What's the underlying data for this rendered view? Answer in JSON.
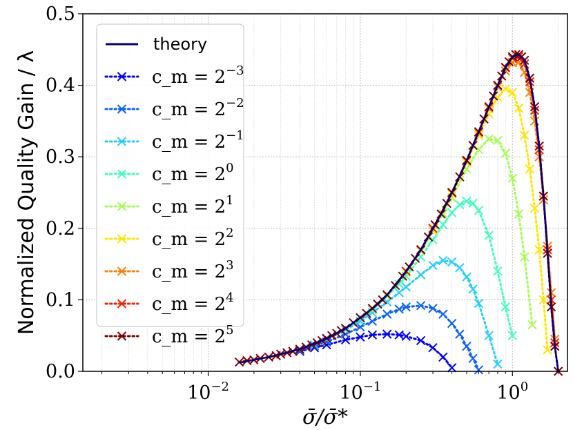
{
  "chart_data": {
    "type": "line",
    "title": "",
    "xlabel": "σ̄/σ̄*",
    "ylabel": "Normalized Quality Gain / λ",
    "xscale": "log",
    "xlim": [
      0.0015,
      2.3
    ],
    "ylim": [
      0.0,
      0.5
    ],
    "xticks": [
      {
        "value": 0.01,
        "label": "10",
        "exp": "−2"
      },
      {
        "value": 0.1,
        "label": "10",
        "exp": "−1"
      },
      {
        "value": 1,
        "label": "10",
        "exp": "0"
      }
    ],
    "yticks": [
      {
        "value": 0.0,
        "label": "0.0"
      },
      {
        "value": 0.1,
        "label": "0.1"
      },
      {
        "value": 0.2,
        "label": "0.2"
      },
      {
        "value": 0.3,
        "label": "0.3"
      },
      {
        "value": 0.4,
        "label": "0.4"
      },
      {
        "value": 0.5,
        "label": "0.5"
      }
    ],
    "grid": true,
    "legend_position": "top-left",
    "theory": {
      "name": "theory",
      "color": "#00007f",
      "x": [
        0.016,
        0.02,
        0.025,
        0.03,
        0.04,
        0.05,
        0.06,
        0.08,
        0.1,
        0.12,
        0.15,
        0.2,
        0.25,
        0.3,
        0.35,
        0.4,
        0.5,
        0.6,
        0.7,
        0.8,
        0.9,
        1.0,
        1.1,
        1.2,
        1.3,
        1.4,
        1.5,
        1.6,
        1.7,
        1.8,
        1.9,
        2.0
      ],
      "y": [
        0.012,
        0.016,
        0.02,
        0.024,
        0.031,
        0.039,
        0.046,
        0.06,
        0.075,
        0.088,
        0.107,
        0.14,
        0.17,
        0.2,
        0.225,
        0.25,
        0.295,
        0.335,
        0.37,
        0.4,
        0.425,
        0.44,
        0.443,
        0.435,
        0.41,
        0.37,
        0.315,
        0.245,
        0.165,
        0.09,
        0.035,
        0.0
      ]
    },
    "series": [
      {
        "name": "c_m = 2",
        "exp": "−3",
        "color": "#0000ff",
        "x": [
          0.04,
          0.05,
          0.06,
          0.08,
          0.1,
          0.12,
          0.15,
          0.18,
          0.2,
          0.25,
          0.3,
          0.35,
          0.4
        ],
        "y": [
          0.028,
          0.033,
          0.037,
          0.044,
          0.048,
          0.051,
          0.052,
          0.051,
          0.049,
          0.043,
          0.033,
          0.02,
          0.005
        ]
      },
      {
        "name": "c_m = 2",
        "exp": "−2",
        "color": "#0a62ff",
        "x": [
          0.04,
          0.05,
          0.06,
          0.08,
          0.1,
          0.12,
          0.15,
          0.18,
          0.2,
          0.25,
          0.3,
          0.35,
          0.4,
          0.45,
          0.5,
          0.55,
          0.6
        ],
        "y": [
          0.029,
          0.036,
          0.041,
          0.052,
          0.062,
          0.07,
          0.08,
          0.087,
          0.09,
          0.092,
          0.088,
          0.08,
          0.067,
          0.052,
          0.035,
          0.018,
          0.002
        ]
      },
      {
        "name": "c_m = 2",
        "exp": "−1",
        "color": "#23cfff",
        "x": [
          0.05,
          0.06,
          0.08,
          0.1,
          0.12,
          0.15,
          0.18,
          0.2,
          0.25,
          0.3,
          0.35,
          0.4,
          0.45,
          0.5,
          0.55,
          0.6,
          0.7,
          0.8
        ],
        "y": [
          0.037,
          0.045,
          0.058,
          0.07,
          0.082,
          0.097,
          0.11,
          0.118,
          0.135,
          0.148,
          0.155,
          0.153,
          0.145,
          0.132,
          0.115,
          0.095,
          0.05,
          0.01
        ]
      },
      {
        "name": "c_m = 2",
        "exp": "0",
        "color": "#3dffc0",
        "x": [
          0.06,
          0.08,
          0.1,
          0.12,
          0.15,
          0.18,
          0.2,
          0.25,
          0.3,
          0.35,
          0.4,
          0.45,
          0.5,
          0.55,
          0.6,
          0.7,
          0.8,
          0.9,
          1.0
        ],
        "y": [
          0.046,
          0.06,
          0.074,
          0.086,
          0.105,
          0.122,
          0.133,
          0.16,
          0.184,
          0.205,
          0.222,
          0.233,
          0.238,
          0.235,
          0.225,
          0.19,
          0.14,
          0.09,
          0.05
        ]
      },
      {
        "name": "c_m = 2",
        "exp": "1",
        "color": "#a3ff52",
        "x": [
          0.08,
          0.1,
          0.12,
          0.15,
          0.2,
          0.25,
          0.3,
          0.35,
          0.4,
          0.5,
          0.6,
          0.7,
          0.8,
          0.9,
          1.0,
          1.1,
          1.2,
          1.35
        ],
        "y": [
          0.06,
          0.075,
          0.087,
          0.106,
          0.138,
          0.168,
          0.196,
          0.22,
          0.243,
          0.283,
          0.31,
          0.325,
          0.323,
          0.305,
          0.27,
          0.22,
          0.16,
          0.065
        ]
      },
      {
        "name": "c_m = 2",
        "exp": "2",
        "color": "#ffe600",
        "x": [
          0.1,
          0.15,
          0.2,
          0.25,
          0.3,
          0.4,
          0.5,
          0.6,
          0.7,
          0.8,
          0.9,
          1.0,
          1.1,
          1.2,
          1.3,
          1.4,
          1.5,
          1.6,
          1.7
        ],
        "y": [
          0.075,
          0.107,
          0.14,
          0.17,
          0.198,
          0.248,
          0.292,
          0.33,
          0.36,
          0.383,
          0.395,
          0.39,
          0.368,
          0.33,
          0.283,
          0.228,
          0.17,
          0.1,
          0.03
        ]
      },
      {
        "name": "c_m = 2",
        "exp": "3",
        "color": "#ff8000",
        "x": [
          0.15,
          0.2,
          0.25,
          0.3,
          0.4,
          0.5,
          0.6,
          0.7,
          0.8,
          0.9,
          1.0,
          1.1,
          1.2,
          1.3,
          1.4,
          1.5,
          1.6,
          1.7,
          1.8,
          1.9
        ],
        "y": [
          0.107,
          0.14,
          0.17,
          0.2,
          0.25,
          0.294,
          0.333,
          0.368,
          0.398,
          0.42,
          0.432,
          0.432,
          0.418,
          0.39,
          0.35,
          0.3,
          0.24,
          0.175,
          0.11,
          0.045
        ]
      },
      {
        "name": "c_m = 2",
        "exp": "4",
        "color": "#ff1e00",
        "x": [
          0.2,
          0.25,
          0.3,
          0.4,
          0.5,
          0.6,
          0.7,
          0.8,
          0.9,
          1.0,
          1.1,
          1.2,
          1.3,
          1.4,
          1.5,
          1.6,
          1.7,
          1.8,
          1.9
        ],
        "y": [
          0.14,
          0.17,
          0.2,
          0.25,
          0.295,
          0.335,
          0.37,
          0.4,
          0.425,
          0.438,
          0.44,
          0.43,
          0.405,
          0.365,
          0.31,
          0.245,
          0.17,
          0.1,
          0.04
        ]
      },
      {
        "name": "c_m = 2",
        "exp": "5",
        "color": "#7f0000",
        "x": [
          0.016,
          0.018,
          0.02,
          0.022,
          0.025,
          0.028,
          0.03,
          0.033,
          0.036,
          0.04,
          0.044,
          0.048,
          0.052,
          0.056,
          0.06,
          0.065,
          0.07,
          0.075,
          0.08,
          0.09,
          0.1,
          0.11,
          0.12,
          0.13,
          0.14,
          0.15,
          0.17,
          0.19,
          0.21,
          0.23,
          0.25,
          0.28,
          0.31,
          0.34,
          0.37,
          0.4,
          0.45,
          0.5,
          0.55,
          0.6,
          0.65,
          0.7,
          0.75,
          0.8,
          0.85,
          0.9,
          0.95,
          1.0,
          1.05,
          1.1,
          1.15,
          1.2,
          1.3,
          1.4,
          1.5,
          1.6,
          1.7,
          1.8,
          1.9,
          2.0
        ],
        "y": [
          0.013,
          0.015,
          0.016,
          0.018,
          0.02,
          0.022,
          0.024,
          0.026,
          0.028,
          0.031,
          0.034,
          0.037,
          0.04,
          0.043,
          0.046,
          0.05,
          0.053,
          0.057,
          0.06,
          0.068,
          0.075,
          0.081,
          0.088,
          0.094,
          0.1,
          0.107,
          0.12,
          0.133,
          0.146,
          0.158,
          0.17,
          0.188,
          0.205,
          0.22,
          0.235,
          0.25,
          0.272,
          0.295,
          0.316,
          0.335,
          0.353,
          0.37,
          0.385,
          0.4,
          0.413,
          0.425,
          0.433,
          0.44,
          0.443,
          0.443,
          0.44,
          0.435,
          0.41,
          0.37,
          0.315,
          0.245,
          0.165,
          0.09,
          0.035,
          0.0
        ]
      }
    ]
  }
}
